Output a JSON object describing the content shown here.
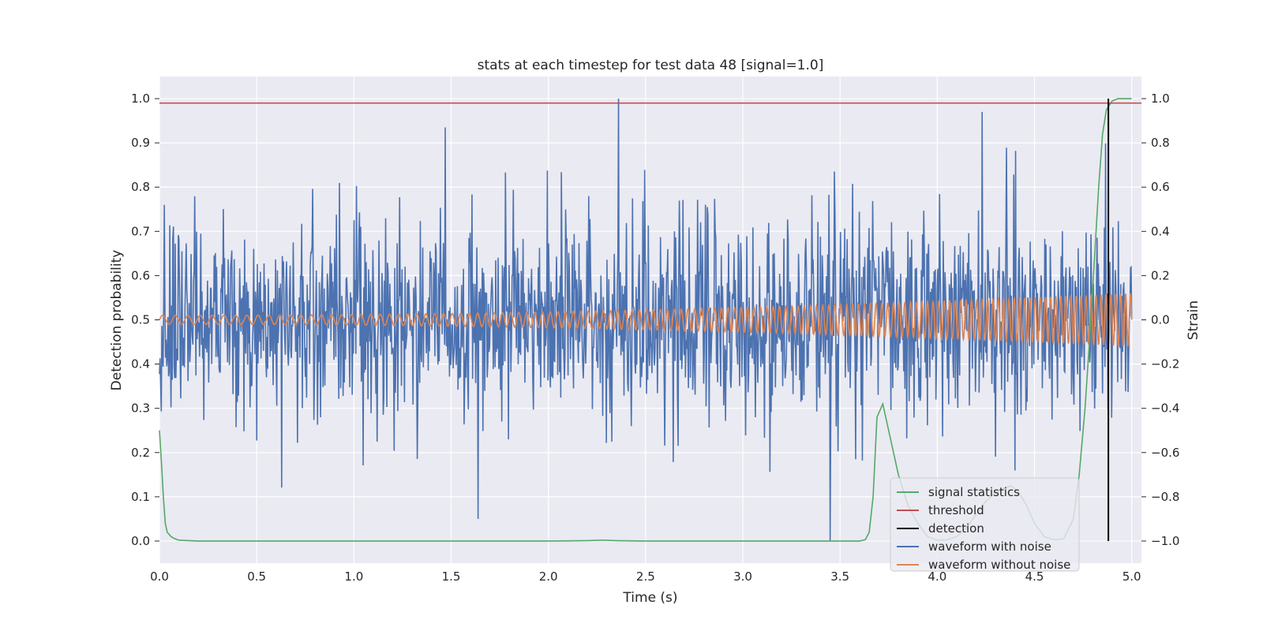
{
  "chart_data": {
    "type": "line",
    "title": "stats at each timestep for test data 48 [signal=1.0]",
    "xlabel": "Time (s)",
    "ylabel": "Detection probability",
    "ylabel_right": "Strain",
    "xlim": [
      0.0,
      5.05
    ],
    "ylim": [
      -0.05,
      1.05
    ],
    "ylim_right": [
      -1.1,
      1.1
    ],
    "x_ticks": [
      "0.0",
      "0.5",
      "1.0",
      "1.5",
      "2.0",
      "2.5",
      "3.0",
      "3.5",
      "4.0",
      "4.5",
      "5.0"
    ],
    "y_ticks": [
      "0.0",
      "0.1",
      "0.2",
      "0.3",
      "0.4",
      "0.5",
      "0.6",
      "0.7",
      "0.8",
      "0.9",
      "1.0"
    ],
    "y_ticks_right": [
      "−1.0",
      "−0.8",
      "−0.6",
      "−0.4",
      "−0.2",
      "0.0",
      "0.2",
      "0.4",
      "0.6",
      "0.8",
      "1.0"
    ],
    "grid": true,
    "background": "#eaeaf2",
    "legend_position": "lower-right",
    "threshold": 0.99,
    "detection_time": 4.88,
    "series": [
      {
        "name": "signal statistics",
        "color": "#55a868",
        "axis": "left",
        "x": [
          0.0,
          0.01,
          0.02,
          0.03,
          0.04,
          0.06,
          0.08,
          0.1,
          0.15,
          0.2,
          0.5,
          1.0,
          1.5,
          2.0,
          2.2,
          2.28,
          2.35,
          2.5,
          3.0,
          3.5,
          3.6,
          3.63,
          3.65,
          3.67,
          3.69,
          3.72,
          3.76,
          3.8,
          3.85,
          3.9,
          3.95,
          4.0,
          4.05,
          4.1,
          4.15,
          4.2,
          4.25,
          4.3,
          4.35,
          4.38,
          4.42,
          4.46,
          4.5,
          4.55,
          4.6,
          4.65,
          4.7,
          4.73,
          4.76,
          4.79,
          4.81,
          4.83,
          4.85,
          4.87,
          4.9,
          4.93,
          4.96,
          5.0
        ],
        "y": [
          0.25,
          0.18,
          0.1,
          0.04,
          0.02,
          0.01,
          0.005,
          0.002,
          0.001,
          0.0,
          0.0,
          0.0,
          0.0,
          0.0,
          0.001,
          0.002,
          0.001,
          0.0,
          0.0,
          0.0,
          0.0,
          0.003,
          0.02,
          0.1,
          0.28,
          0.31,
          0.23,
          0.15,
          0.08,
          0.04,
          0.01,
          0.002,
          0.003,
          0.01,
          0.03,
          0.06,
          0.09,
          0.11,
          0.12,
          0.125,
          0.11,
          0.08,
          0.04,
          0.01,
          0.003,
          0.005,
          0.05,
          0.15,
          0.3,
          0.5,
          0.65,
          0.8,
          0.92,
          0.975,
          0.995,
          1.0,
          1.0,
          1.0
        ]
      },
      {
        "name": "threshold",
        "color": "#c44e52",
        "axis": "left",
        "x": [
          0.0,
          5.05
        ],
        "y": [
          0.99,
          0.99
        ]
      },
      {
        "name": "detection",
        "color": "#000000",
        "axis": "left",
        "x": [
          4.88,
          4.88
        ],
        "y": [
          0.0,
          1.0
        ]
      },
      {
        "name": "waveform with noise",
        "color": "#4c72b0",
        "axis": "right",
        "noise_sigma": 0.22,
        "noise_clip": [
          -1.0,
          1.0
        ],
        "extremes": [
          [
            2.36,
            1.0
          ],
          [
            3.45,
            -1.0
          ],
          [
            1.64,
            -0.9
          ],
          [
            1.47,
            0.87
          ],
          [
            4.23,
            0.94
          ]
        ]
      },
      {
        "name": "waveform without noise",
        "color": "#dd8452",
        "axis": "right",
        "amplitude_start": 0.02,
        "amplitude_end": 0.12,
        "frequency_start_hz": 15,
        "frequency_end_hz": 40
      }
    ]
  }
}
